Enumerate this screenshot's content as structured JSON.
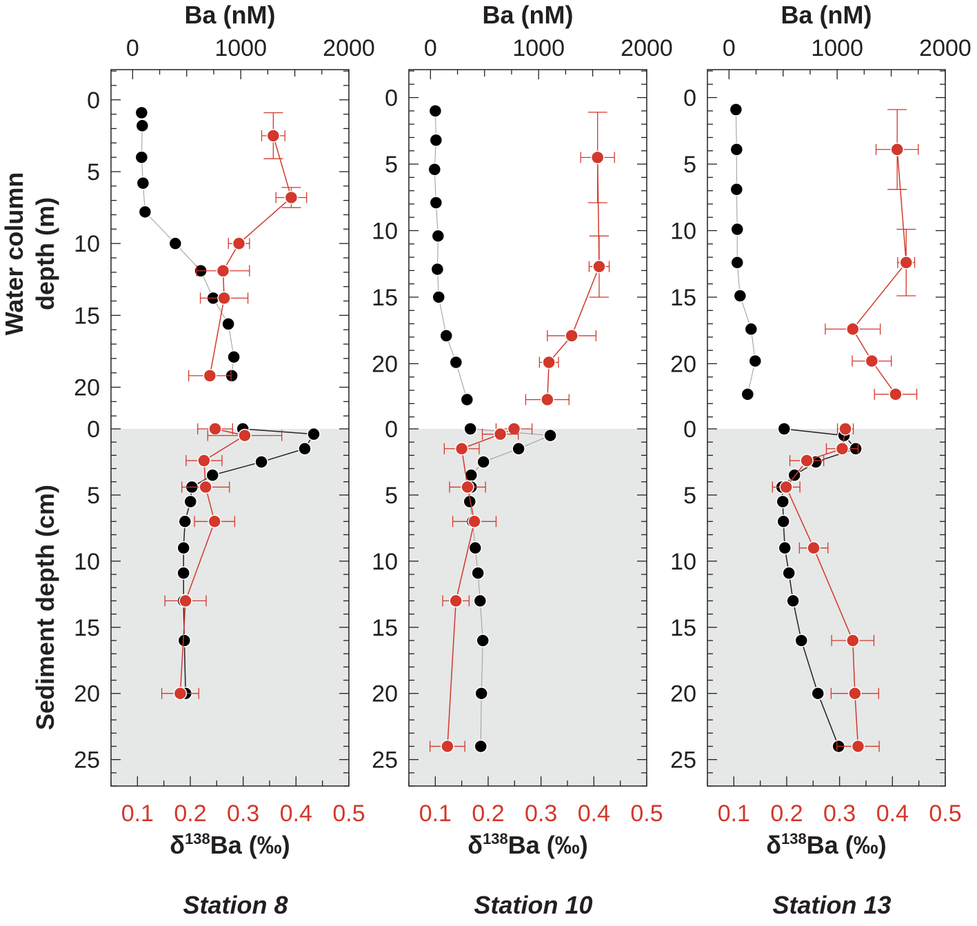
{
  "chart_data": {
    "type": "scatter",
    "top_axis_label": "Ba (nM)",
    "bottom_axis_label_prefix": "δ",
    "bottom_axis_label_sup": "138",
    "bottom_axis_label_suffix": "Ba (‰)",
    "ylabel_water": [
      "Water column",
      "depth (m)"
    ],
    "ylabel_sediment": "Sediment depth (cm)",
    "ba_ticks": [
      0,
      1000,
      2000
    ],
    "ba_lim": [
      -200,
      2000
    ],
    "d_ticks": [
      0.1,
      0.2,
      0.3,
      0.4,
      0.5
    ],
    "d_lim": [
      0.05,
      0.5
    ],
    "sediment_ticks": [
      0,
      5,
      10,
      15,
      20,
      25
    ],
    "sediment_lim": [
      0,
      27
    ],
    "colors": {
      "ba": "#000000",
      "d138": "#d2382b",
      "sediment_bg": "#e6e7e7"
    },
    "panels": [
      {
        "title": "Station 8",
        "water_lim": [
          -2.1,
          22.9
        ],
        "water_ticks": [
          0,
          5,
          10,
          15,
          20
        ],
        "ba_water": [
          [
            83,
            0.9
          ],
          [
            89,
            1.8
          ],
          [
            83,
            4.0
          ],
          [
            96,
            5.8
          ],
          [
            115,
            7.8
          ],
          [
            395,
            10.0
          ],
          [
            630,
            11.9
          ],
          [
            745,
            13.8
          ],
          [
            885,
            15.6
          ],
          [
            936,
            17.9
          ],
          [
            917,
            19.2
          ]
        ],
        "ba_sediment": [
          [
            1019,
            0
          ],
          [
            1675,
            0.4
          ],
          [
            1592,
            1.5
          ],
          [
            1191,
            2.5
          ],
          [
            739,
            3.5
          ],
          [
            548,
            4.4
          ],
          [
            535,
            5.5
          ],
          [
            484,
            7.0
          ],
          [
            471,
            9.0
          ],
          [
            471,
            10.9
          ],
          [
            471,
            13.0
          ],
          [
            478,
            16.0
          ],
          [
            490,
            20.0
          ]
        ],
        "d_water": [
          [
            0.357,
            2.5,
            0.022,
            1.6
          ],
          [
            0.391,
            6.8,
            0.029,
            0.7
          ],
          [
            0.292,
            10.0,
            0.02,
            0
          ],
          [
            0.262,
            11.9,
            0.05,
            0
          ],
          [
            0.264,
            13.8,
            0.045,
            0
          ],
          [
            0.237,
            19.2,
            0.04,
            0
          ]
        ],
        "d_sediment": [
          [
            0.247,
            0,
            0.033,
            0
          ],
          [
            0.303,
            0.5,
            0.07,
            0
          ],
          [
            0.226,
            2.4,
            0.034,
            0
          ],
          [
            0.229,
            4.4,
            0.045,
            0
          ],
          [
            0.246,
            7.0,
            0.038,
            0
          ],
          [
            0.191,
            13.0,
            0.039,
            0
          ],
          [
            0.181,
            20.0,
            0.035,
            0
          ]
        ]
      },
      {
        "title": "Station 10",
        "water_lim": [
          -2.1,
          24.9
        ],
        "water_ticks": [
          0,
          5,
          10,
          15,
          20
        ],
        "ba_water": [
          [
            45,
            1.0
          ],
          [
            51,
            3.2
          ],
          [
            38,
            5.4
          ],
          [
            51,
            7.9
          ],
          [
            70,
            10.4
          ],
          [
            64,
            12.9
          ],
          [
            76,
            15.0
          ],
          [
            146,
            17.9
          ],
          [
            236,
            19.9
          ],
          [
            338,
            22.7
          ]
        ],
        "ba_sediment": [
          [
            369,
            0
          ],
          [
            1108,
            0.5
          ],
          [
            815,
            1.5
          ],
          [
            490,
            2.5
          ],
          [
            376,
            3.5
          ],
          [
            376,
            4.4
          ],
          [
            363,
            5.5
          ],
          [
            389,
            7.0
          ],
          [
            414,
            9.0
          ],
          [
            439,
            10.9
          ],
          [
            459,
            13.0
          ],
          [
            484,
            16.0
          ],
          [
            471,
            20.0
          ],
          [
            465,
            24.0
          ]
        ],
        "d_water": [
          [
            0.407,
            4.5,
            0.032,
            3.4
          ],
          [
            0.41,
            12.7,
            0.019,
            2.3
          ],
          [
            0.358,
            17.9,
            0.046,
            0
          ],
          [
            0.315,
            19.9,
            0.018,
            0
          ],
          [
            0.312,
            22.7,
            0.041,
            0
          ]
        ],
        "d_sediment": [
          [
            0.249,
            0,
            0.034,
            0
          ],
          [
            0.223,
            0.4,
            0.034,
            0
          ],
          [
            0.15,
            1.5,
            0.033,
            0
          ],
          [
            0.161,
            4.4,
            0.034,
            0
          ],
          [
            0.174,
            7.0,
            0.041,
            0
          ],
          [
            0.139,
            13.0,
            0.025,
            0
          ],
          [
            0.123,
            24.0,
            0.033,
            0
          ]
        ]
      },
      {
        "title": "Station 13",
        "water_lim": [
          -2.1,
          24.9
        ],
        "water_ticks": [
          0,
          5,
          10,
          15,
          20
        ],
        "ba_water": [
          [
            64,
            0.9
          ],
          [
            70,
            3.9
          ],
          [
            70,
            6.9
          ],
          [
            76,
            9.9
          ],
          [
            76,
            12.4
          ],
          [
            102,
            14.9
          ],
          [
            204,
            17.4
          ],
          [
            242,
            19.8
          ],
          [
            172,
            22.3
          ]
        ],
        "ba_sediment": [
          [
            510,
            0
          ],
          [
            1064,
            0.5
          ],
          [
            1172,
            1.5
          ],
          [
            803,
            2.5
          ],
          [
            605,
            3.5
          ],
          [
            490,
            4.4
          ],
          [
            497,
            5.5
          ],
          [
            503,
            7.0
          ],
          [
            516,
            9.0
          ],
          [
            554,
            10.9
          ],
          [
            592,
            13.0
          ],
          [
            669,
            16.0
          ],
          [
            822,
            20.0
          ],
          [
            1013,
            24.0
          ]
        ],
        "d_water": [
          [
            0.409,
            3.9,
            0.04,
            3.0
          ],
          [
            0.426,
            12.4,
            0.016,
            2.5
          ],
          [
            0.325,
            17.4,
            0.052,
            0
          ],
          [
            0.361,
            19.8,
            0.037,
            0
          ],
          [
            0.406,
            22.3,
            0.04,
            0
          ]
        ],
        "d_sediment": [
          [
            0.311,
            0,
            0.015,
            0
          ],
          [
            0.305,
            1.5,
            0.03,
            0
          ],
          [
            0.238,
            2.4,
            0.032,
            0
          ],
          [
            0.199,
            4.4,
            0.026,
            0
          ],
          [
            0.251,
            9.0,
            0.027,
            0
          ],
          [
            0.325,
            16.0,
            0.04,
            0
          ],
          [
            0.329,
            20.0,
            0.045,
            0
          ],
          [
            0.335,
            24.0,
            0.04,
            0
          ]
        ]
      }
    ]
  }
}
